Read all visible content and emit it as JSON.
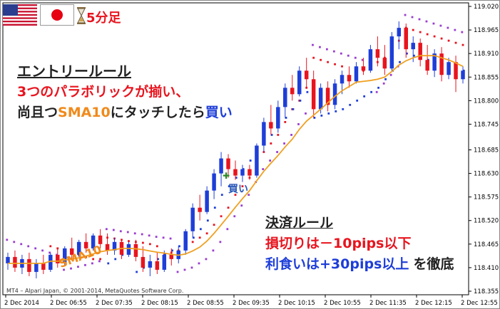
{
  "header": {
    "timeframe_label": "5分足",
    "flags": [
      "us-flag",
      "japan-flag"
    ],
    "timer_icon": "hourglass-icon"
  },
  "entry_rule": {
    "title": "エントリールール",
    "line1": "3つのパラボリックが揃い、",
    "line2_prefix": "尚且つ",
    "line2_sma": "SMA10",
    "line2_mid": "にタッチしたら",
    "line2_buy": "買い"
  },
  "exit_rule": {
    "title": "決済ルール",
    "stop_loss": "損切りは－10pips以下",
    "take_profit": "利食いは+30pips以上",
    "suffix": "を徹底"
  },
  "annotations": {
    "buy_marker": "買い",
    "sma_label": "SMA10"
  },
  "copyright": "MT4 – Alpari Japan, © 2001-2014, MetaQuotes Software Corp.",
  "colors": {
    "bull_candle": "#1e3ed8",
    "bear_candle": "#e8141e",
    "sma": "#f0a020",
    "sar_purple": "#9a3cd0",
    "sar_red": "#e8141e",
    "sar_blue": "#1e3ed8"
  },
  "chart_data": {
    "type": "candlestick",
    "title": "",
    "y_ticks": [
      119.02,
      118.965,
      118.91,
      118.855,
      118.8,
      118.745,
      118.685,
      118.63,
      118.575,
      118.52,
      118.465,
      118.41,
      118.355
    ],
    "y_tick_labels": [
      "119.020",
      "118.965",
      "118.910",
      "118.855",
      "118.800",
      "118.745",
      "118.685",
      "118.630",
      "118.575",
      "118.520",
      "118.465",
      "118.410",
      "118.355"
    ],
    "ylim": [
      118.35,
      119.025
    ],
    "x_tick_labels": [
      "2 Dec 2014",
      "2 Dec 06:55",
      "2 Dec 07:35",
      "2 Dec 08:15",
      "2 Dec 08:55",
      "2 Dec 09:35",
      "2 Dec 10:15",
      "2 Dec 10:55",
      "2 Dec 11:35",
      "2 Dec 12:15",
      "2 Dec 12:55"
    ],
    "candles": [
      {
        "o": 118.42,
        "h": 118.445,
        "l": 118.405,
        "c": 118.435
      },
      {
        "o": 118.435,
        "h": 118.45,
        "l": 118.4,
        "c": 118.41
      },
      {
        "o": 118.41,
        "h": 118.44,
        "l": 118.395,
        "c": 118.43
      },
      {
        "o": 118.43,
        "h": 118.445,
        "l": 118.39,
        "c": 118.4
      },
      {
        "o": 118.4,
        "h": 118.43,
        "l": 118.385,
        "c": 118.42
      },
      {
        "o": 118.42,
        "h": 118.44,
        "l": 118.395,
        "c": 118.405
      },
      {
        "o": 118.405,
        "h": 118.445,
        "l": 118.4,
        "c": 118.44
      },
      {
        "o": 118.44,
        "h": 118.455,
        "l": 118.41,
        "c": 118.42
      },
      {
        "o": 118.42,
        "h": 118.46,
        "l": 118.415,
        "c": 118.455
      },
      {
        "o": 118.455,
        "h": 118.48,
        "l": 118.43,
        "c": 118.44
      },
      {
        "o": 118.44,
        "h": 118.475,
        "l": 118.435,
        "c": 118.47
      },
      {
        "o": 118.47,
        "h": 118.49,
        "l": 118.445,
        "c": 118.455
      },
      {
        "o": 118.455,
        "h": 118.49,
        "l": 118.45,
        "c": 118.485
      },
      {
        "o": 118.485,
        "h": 118.5,
        "l": 118.455,
        "c": 118.465
      },
      {
        "o": 118.465,
        "h": 118.49,
        "l": 118.44,
        "c": 118.45
      },
      {
        "o": 118.45,
        "h": 118.48,
        "l": 118.44,
        "c": 118.47
      },
      {
        "o": 118.47,
        "h": 118.475,
        "l": 118.43,
        "c": 118.44
      },
      {
        "o": 118.44,
        "h": 118.47,
        "l": 118.435,
        "c": 118.465
      },
      {
        "o": 118.465,
        "h": 118.475,
        "l": 118.425,
        "c": 118.435
      },
      {
        "o": 118.435,
        "h": 118.46,
        "l": 118.4,
        "c": 118.41
      },
      {
        "o": 118.41,
        "h": 118.44,
        "l": 118.39,
        "c": 118.425
      },
      {
        "o": 118.425,
        "h": 118.445,
        "l": 118.395,
        "c": 118.405
      },
      {
        "o": 118.405,
        "h": 118.45,
        "l": 118.4,
        "c": 118.44
      },
      {
        "o": 118.44,
        "h": 118.455,
        "l": 118.415,
        "c": 118.43
      },
      {
        "o": 118.43,
        "h": 118.46,
        "l": 118.42,
        "c": 118.45
      },
      {
        "o": 118.45,
        "h": 118.5,
        "l": 118.44,
        "c": 118.495
      },
      {
        "o": 118.495,
        "h": 118.56,
        "l": 118.48,
        "c": 118.55
      },
      {
        "o": 118.55,
        "h": 118.58,
        "l": 118.52,
        "c": 118.54
      },
      {
        "o": 118.54,
        "h": 118.6,
        "l": 118.535,
        "c": 118.59
      },
      {
        "o": 118.59,
        "h": 118.64,
        "l": 118.57,
        "c": 118.63
      },
      {
        "o": 118.63,
        "h": 118.68,
        "l": 118.6,
        "c": 118.665
      },
      {
        "o": 118.665,
        "h": 118.675,
        "l": 118.62,
        "c": 118.64
      },
      {
        "o": 118.64,
        "h": 118.66,
        "l": 118.615,
        "c": 118.625
      },
      {
        "o": 118.625,
        "h": 118.65,
        "l": 118.61,
        "c": 118.64
      },
      {
        "o": 118.64,
        "h": 118.65,
        "l": 118.615,
        "c": 118.625
      },
      {
        "o": 118.625,
        "h": 118.7,
        "l": 118.62,
        "c": 118.695
      },
      {
        "o": 118.695,
        "h": 118.76,
        "l": 118.68,
        "c": 118.75
      },
      {
        "o": 118.75,
        "h": 118.79,
        "l": 118.72,
        "c": 118.735
      },
      {
        "o": 118.735,
        "h": 118.8,
        "l": 118.725,
        "c": 118.785
      },
      {
        "o": 118.785,
        "h": 118.84,
        "l": 118.76,
        "c": 118.83
      },
      {
        "o": 118.83,
        "h": 118.86,
        "l": 118.8,
        "c": 118.815
      },
      {
        "o": 118.815,
        "h": 118.88,
        "l": 118.81,
        "c": 118.87
      },
      {
        "o": 118.87,
        "h": 118.9,
        "l": 118.83,
        "c": 118.85
      },
      {
        "o": 118.85,
        "h": 118.87,
        "l": 118.76,
        "c": 118.78
      },
      {
        "o": 118.78,
        "h": 118.84,
        "l": 118.77,
        "c": 118.83
      },
      {
        "o": 118.83,
        "h": 118.845,
        "l": 118.775,
        "c": 118.79
      },
      {
        "o": 118.79,
        "h": 118.85,
        "l": 118.78,
        "c": 118.84
      },
      {
        "o": 118.84,
        "h": 118.87,
        "l": 118.815,
        "c": 118.86
      },
      {
        "o": 118.86,
        "h": 118.88,
        "l": 118.83,
        "c": 118.845
      },
      {
        "o": 118.845,
        "h": 118.89,
        "l": 118.84,
        "c": 118.88
      },
      {
        "o": 118.88,
        "h": 118.9,
        "l": 118.86,
        "c": 118.87
      },
      {
        "o": 118.87,
        "h": 118.93,
        "l": 118.865,
        "c": 118.92
      },
      {
        "o": 118.92,
        "h": 118.95,
        "l": 118.88,
        "c": 118.9
      },
      {
        "o": 118.9,
        "h": 118.93,
        "l": 118.86,
        "c": 118.875
      },
      {
        "o": 118.875,
        "h": 118.96,
        "l": 118.87,
        "c": 118.95
      },
      {
        "o": 118.95,
        "h": 118.985,
        "l": 118.92,
        "c": 118.97
      },
      {
        "o": 118.97,
        "h": 118.98,
        "l": 118.9,
        "c": 118.92
      },
      {
        "o": 118.92,
        "h": 118.95,
        "l": 118.89,
        "c": 118.935
      },
      {
        "o": 118.935,
        "h": 118.945,
        "l": 118.88,
        "c": 118.895
      },
      {
        "o": 118.895,
        "h": 118.93,
        "l": 118.86,
        "c": 118.87
      },
      {
        "o": 118.87,
        "h": 118.92,
        "l": 118.855,
        "c": 118.91
      },
      {
        "o": 118.91,
        "h": 118.925,
        "l": 118.845,
        "c": 118.86
      },
      {
        "o": 118.86,
        "h": 118.9,
        "l": 118.85,
        "c": 118.89
      },
      {
        "o": 118.89,
        "h": 118.905,
        "l": 118.82,
        "c": 118.85
      },
      {
        "o": 118.85,
        "h": 118.88,
        "l": 118.84,
        "c": 118.87
      }
    ],
    "sma10": [
      118.42,
      118.42,
      118.42,
      118.42,
      118.42,
      118.42,
      118.425,
      118.425,
      118.428,
      118.43,
      118.433,
      118.437,
      118.442,
      118.447,
      118.45,
      118.452,
      118.455,
      118.455,
      118.454,
      118.452,
      118.449,
      118.446,
      118.444,
      118.441,
      118.439,
      118.442,
      118.449,
      118.458,
      118.472,
      118.49,
      118.51,
      118.53,
      118.551,
      118.571,
      118.59,
      118.613,
      118.635,
      118.654,
      118.672,
      118.692,
      118.71,
      118.733,
      118.752,
      118.766,
      118.78,
      118.795,
      118.81,
      118.823,
      118.833,
      118.843,
      118.845,
      118.847,
      118.85,
      118.855,
      118.868,
      118.883,
      118.893,
      118.9,
      118.905,
      118.905,
      118.905,
      118.9,
      118.895,
      118.888,
      118.88
    ],
    "sar_purple": [
      118.475,
      118.47,
      118.465,
      118.46,
      118.455,
      118.45,
      118.445,
      118.44,
      118.405,
      118.408,
      118.412,
      118.416,
      118.42,
      118.425,
      118.5,
      118.498,
      118.495,
      118.493,
      118.49,
      118.488,
      118.485,
      118.482,
      118.48,
      118.478,
      118.4,
      118.405,
      118.41,
      118.42,
      118.43,
      118.45,
      118.47,
      118.5,
      118.53,
      118.555,
      118.58,
      118.61,
      118.64,
      118.66,
      118.68,
      118.7,
      118.72,
      118.745,
      118.77,
      118.93,
      118.925,
      118.92,
      118.915,
      118.91,
      118.905,
      118.9,
      118.895,
      118.89,
      118.82,
      118.84,
      118.86,
      118.88,
      119.0,
      118.995,
      118.99,
      118.985,
      118.98,
      118.975,
      118.97,
      118.965,
      118.96
    ],
    "sar_red": [
      null,
      null,
      null,
      null,
      null,
      null,
      118.46,
      118.455,
      118.45,
      118.445,
      118.44,
      118.435,
      118.43,
      118.43,
      118.48,
      118.478,
      118.475,
      118.472,
      118.47,
      118.468,
      118.465,
      118.46,
      118.44,
      118.445,
      118.45,
      118.46,
      118.47,
      118.48,
      118.49,
      118.51,
      118.53,
      118.55,
      118.58,
      118.6,
      118.62,
      118.65,
      118.68,
      118.7,
      118.72,
      118.75,
      118.78,
      118.8,
      118.83,
      118.9,
      118.895,
      118.89,
      118.885,
      118.88,
      118.85,
      118.86,
      118.87,
      118.88,
      118.89,
      118.9,
      118.92,
      118.94,
      118.97,
      118.965,
      118.96,
      118.955,
      118.95,
      118.945,
      118.94,
      118.935,
      118.93
    ],
    "sar_blue": [
      null,
      null,
      null,
      null,
      null,
      null,
      null,
      null,
      null,
      null,
      null,
      null,
      null,
      null,
      118.42,
      118.43,
      118.44,
      118.45,
      118.4,
      118.41,
      118.42,
      118.43,
      118.44,
      118.45,
      118.46,
      118.47,
      118.48,
      118.5,
      118.52,
      118.55,
      118.58,
      118.6,
      118.62,
      118.64,
      118.66,
      118.68,
      118.7,
      118.72,
      118.74,
      118.76,
      118.78,
      118.8,
      118.82,
      118.76,
      118.765,
      118.77,
      118.775,
      118.78,
      118.79,
      118.8,
      118.81,
      118.82,
      118.83,
      118.85,
      118.87,
      118.89,
      118.91,
      118.905,
      118.9,
      118.895,
      118.89,
      118.885,
      118.88,
      118.875,
      118.87
    ]
  }
}
